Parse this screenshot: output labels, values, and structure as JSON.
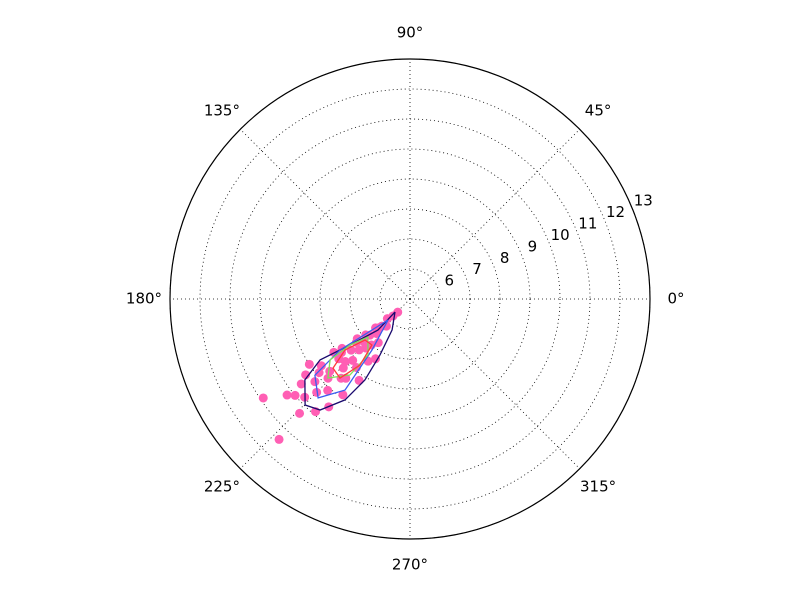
{
  "chart_data": {
    "type": "polar",
    "rlim": [
      5,
      13
    ],
    "rticks": [
      6,
      7,
      8,
      9,
      10,
      11,
      12,
      13
    ],
    "theta_ticks": [
      {
        "value": 0,
        "label": "0°"
      },
      {
        "value": 45,
        "label": "45°"
      },
      {
        "value": 90,
        "label": "90°"
      },
      {
        "value": 135,
        "label": "135°"
      },
      {
        "value": 180,
        "label": "180°"
      },
      {
        "value": 225,
        "label": "225°"
      },
      {
        "value": 270,
        "label": "270°"
      },
      {
        "value": 315,
        "label": "315°"
      }
    ],
    "grid": true,
    "points": {
      "color": "#ff5fb4",
      "theta": [
        227,
        214,
        226,
        220,
        223,
        218,
        230,
        225,
        221,
        216,
        228,
        233,
        219,
        224,
        222,
        217,
        229,
        235,
        213,
        226,
        231,
        220,
        224,
        218,
        227,
        238,
        221,
        215,
        225,
        232,
        219,
        223,
        228,
        216,
        222,
        236,
        226,
        230,
        220,
        224,
        217,
        229,
        221,
        234,
        225,
        219,
        227,
        223,
        240,
        218
      ],
      "r": [
        11.4,
        10.9,
        10.3,
        10.0,
        9.8,
        9.6,
        9.9,
        9.4,
        9.2,
        9.3,
        9.1,
        9.5,
        8.9,
        8.8,
        8.6,
        8.7,
        8.5,
        8.9,
        9.0,
        8.2,
        8.4,
        8.1,
        8.0,
        7.9,
        7.8,
        8.2,
        7.6,
        8.1,
        7.4,
        7.9,
        7.3,
        7.1,
        7.2,
        7.8,
        6.8,
        7.5,
        6.6,
        7.0,
        6.5,
        6.3,
        7.2,
        6.2,
        6.0,
        6.8,
        5.8,
        6.9,
        5.6,
        6.4,
        7.3,
        10.2
      ]
    },
    "contours": [
      {
        "color": "#1a0a6e",
        "theta": [
          220.9,
          224.1,
          217.5,
          214.1,
          217.6,
          225.3,
          231,
          237.2,
          240.9,
          241.8,
          239.9,
          220.9
        ],
        "r": [
          5.66,
          6.49,
          7.52,
          8.62,
          9.42,
          9.97,
          9.76,
          9.0,
          8.09,
          7.12,
          6.19,
          5.66
        ]
      },
      {
        "color": "#3a5cf0",
        "theta": [
          223.7,
          216.1,
          218.7,
          227.1,
          234.5,
          233.3,
          223.7
        ],
        "r": [
          6.01,
          7.89,
          9.06,
          9.5,
          8.73,
          7.12,
          6.01
        ]
      },
      {
        "color": "#7fe05a",
        "theta": [
          217.5,
          222.1,
          233.1,
          231.7,
          223.9,
          217.3,
          217.5
        ],
        "r": [
          7.52,
          6.89,
          7.33,
          8.23,
          8.8,
          8.35,
          7.52
        ]
      },
      {
        "color": "#ff3b3b",
        "theta": [
          218.1,
          222.3,
          230.4,
          232.9,
          228.5,
          221.9,
          218.1
        ],
        "r": [
          7.75,
          7.03,
          6.99,
          7.76,
          8.52,
          8.45,
          7.75
        ]
      }
    ]
  }
}
